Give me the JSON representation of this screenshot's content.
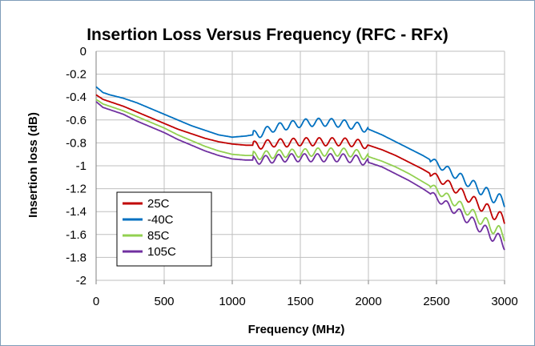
{
  "chart_data": {
    "type": "line",
    "title": "Insertion Loss Versus Frequency (RFC - RFx)",
    "xlabel": "Frequency (MHz)",
    "ylabel": "Insertion loss (dB)",
    "xlim": [
      0,
      3000
    ],
    "ylim": [
      -2,
      0
    ],
    "xticks": [
      "0",
      "500",
      "1000",
      "1500",
      "2000",
      "2500",
      "3000"
    ],
    "yticks": [
      "0",
      "-0.2",
      "-0.4",
      "-0.6",
      "-0.8",
      "-1",
      "-1.2",
      "-1.4",
      "-1.6",
      "-1.8",
      "-2"
    ],
    "grid": true,
    "legend_position": "bottom-left",
    "x": [
      0,
      50,
      100,
      200,
      300,
      400,
      500,
      600,
      700,
      800,
      900,
      1000,
      1100,
      1200,
      1300,
      1400,
      1500,
      1600,
      1700,
      1800,
      1900,
      2000,
      2100,
      2200,
      2300,
      2400,
      2500,
      2600,
      2700,
      2800,
      2900,
      3000
    ],
    "series": [
      {
        "name": "25C",
        "color": "#c00000",
        "values": [
          -0.38,
          -0.42,
          -0.44,
          -0.48,
          -0.53,
          -0.58,
          -0.63,
          -0.68,
          -0.72,
          -0.76,
          -0.79,
          -0.81,
          -0.82,
          -0.82,
          -0.8,
          -0.8,
          -0.79,
          -0.79,
          -0.79,
          -0.79,
          -0.8,
          -0.82,
          -0.86,
          -0.91,
          -0.97,
          -1.03,
          -1.1,
          -1.17,
          -1.25,
          -1.33,
          -1.4,
          -1.48
        ]
      },
      {
        "name": "-40C",
        "color": "#0070c0",
        "values": [
          -0.31,
          -0.36,
          -0.38,
          -0.41,
          -0.45,
          -0.5,
          -0.55,
          -0.6,
          -0.65,
          -0.69,
          -0.73,
          -0.75,
          -0.74,
          -0.72,
          -0.67,
          -0.65,
          -0.63,
          -0.62,
          -0.62,
          -0.63,
          -0.65,
          -0.68,
          -0.73,
          -0.79,
          -0.85,
          -0.91,
          -0.98,
          -1.05,
          -1.12,
          -1.19,
          -1.26,
          -1.32
        ]
      },
      {
        "name": "85C",
        "color": "#92d050",
        "values": [
          -0.42,
          -0.46,
          -0.48,
          -0.52,
          -0.57,
          -0.62,
          -0.67,
          -0.73,
          -0.78,
          -0.83,
          -0.87,
          -0.9,
          -0.91,
          -0.91,
          -0.9,
          -0.89,
          -0.89,
          -0.88,
          -0.88,
          -0.88,
          -0.89,
          -0.92,
          -0.96,
          -1.01,
          -1.07,
          -1.14,
          -1.21,
          -1.29,
          -1.37,
          -1.45,
          -1.53,
          -1.61
        ]
      },
      {
        "name": "105C",
        "color": "#7030a0",
        "values": [
          -0.44,
          -0.49,
          -0.51,
          -0.55,
          -0.61,
          -0.66,
          -0.71,
          -0.77,
          -0.82,
          -0.87,
          -0.91,
          -0.94,
          -0.95,
          -0.95,
          -0.94,
          -0.93,
          -0.93,
          -0.93,
          -0.93,
          -0.93,
          -0.94,
          -0.97,
          -1.01,
          -1.07,
          -1.13,
          -1.2,
          -1.28,
          -1.36,
          -1.44,
          -1.52,
          -1.6,
          -1.68
        ]
      }
    ]
  }
}
